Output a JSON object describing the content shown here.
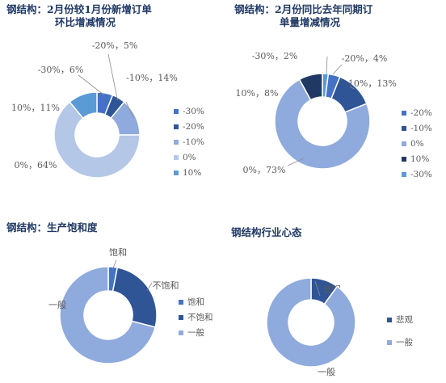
{
  "panels": [
    {
      "title_lines": [
        "钢结构：2月份较1月份新增订单",
        "环比增减情况"
      ],
      "chart_data": {
        "type": "pie",
        "categories": [
          "-30%",
          "-20%",
          "-10%",
          "0%",
          "10%"
        ],
        "values": [
          6,
          5,
          14,
          64,
          11
        ],
        "labels": [
          "-30%，6%",
          "-20%，5%",
          "-10%，14%",
          "0%，64%",
          "10%，11%"
        ],
        "colors": [
          "#4472c4",
          "#2f5597",
          "#8faadc",
          "#b4c7e7",
          "#5b9bd5"
        ],
        "legend_order": [
          0,
          1,
          2,
          3,
          4
        ],
        "legend": "right"
      }
    },
    {
      "title_lines": [
        "钢结构：2月份同比去年同期订",
        "单量增减情况"
      ],
      "chart_data": {
        "type": "pie",
        "categories": [
          "-30%",
          "-20%",
          "-10%",
          "0%",
          "10%"
        ],
        "values": [
          2,
          4,
          13,
          73,
          8
        ],
        "labels": [
          "-30%，2%",
          "-20%，4%",
          "-10%，13%",
          "0%，73%",
          "10%，8%"
        ],
        "colors": [
          "#5b9bd5",
          "#4472c4",
          "#2f5597",
          "#8faadc",
          "#1f3864"
        ],
        "legend_order": [
          1,
          2,
          3,
          4,
          0
        ],
        "legend": "right"
      }
    },
    {
      "title_lines": [
        "钢结构：生产饱和度"
      ],
      "chart_data": {
        "type": "pie",
        "categories": [
          "饱和",
          "不饱和",
          "一般"
        ],
        "values": [
          3,
          26,
          71
        ],
        "labels": [
          "饱和",
          "不饱和",
          "一般"
        ],
        "colors": [
          "#4472c4",
          "#2f5597",
          "#8faadc"
        ],
        "legend_order": [
          0,
          1,
          2
        ],
        "legend": "right"
      }
    },
    {
      "title_lines": [
        "钢结构行业心态"
      ],
      "chart_data": {
        "type": "pie",
        "categories": [
          "悲观",
          "一般"
        ],
        "values": [
          10,
          90
        ],
        "labels": [
          "悲观",
          "一般"
        ],
        "colors": [
          "#2f5597",
          "#8faadc"
        ],
        "legend_order": [
          0,
          1
        ],
        "legend": "right"
      }
    }
  ]
}
